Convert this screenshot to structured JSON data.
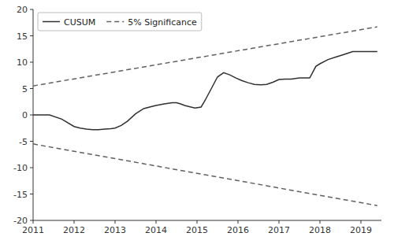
{
  "chart_data": {
    "type": "line",
    "xlim": [
      2011,
      2019.5
    ],
    "ylim": [
      -20,
      20
    ],
    "xticks": [
      2011,
      2012,
      2013,
      2014,
      2015,
      2016,
      2017,
      2018,
      2019
    ],
    "yticks": [
      -20,
      -15,
      -10,
      -5,
      0,
      5,
      10,
      15,
      20
    ],
    "grid": false,
    "legend": "upper left",
    "series": [
      {
        "name": "CUSUM",
        "color": "#303030",
        "line_style": "solid",
        "x": [
          2011,
          2011.2,
          2011.4,
          2011.7,
          2012.0,
          2012.15,
          2012.3,
          2012.45,
          2012.6,
          2012.75,
          2012.9,
          2013.0,
          2013.15,
          2013.3,
          2013.5,
          2013.7,
          2013.9,
          2014.0,
          2014.2,
          2014.4,
          2014.5,
          2014.6,
          2014.7,
          2014.85,
          2014.95,
          2015.1,
          2015.2,
          2015.35,
          2015.5,
          2015.65,
          2015.8,
          2015.95,
          2016.1,
          2016.25,
          2016.4,
          2016.55,
          2016.7,
          2016.85,
          2017.0,
          2017.15,
          2017.3,
          2017.5,
          2017.75,
          2017.9,
          2018.0,
          2018.2,
          2018.4,
          2018.6,
          2018.8,
          2019.0,
          2019.2,
          2019.4
        ],
        "values": [
          0,
          0,
          0,
          -0.8,
          -2.2,
          -2.5,
          -2.7,
          -2.8,
          -2.8,
          -2.7,
          -2.6,
          -2.5,
          -2.0,
          -1.2,
          0.2,
          1.2,
          1.6,
          1.8,
          2.1,
          2.3,
          2.3,
          2.1,
          1.8,
          1.5,
          1.3,
          1.5,
          2.8,
          5.0,
          7.2,
          8.0,
          7.6,
          7.0,
          6.5,
          6.1,
          5.8,
          5.7,
          5.8,
          6.2,
          6.7,
          6.8,
          6.8,
          7.0,
          7.0,
          9.2,
          9.7,
          10.5,
          11.0,
          11.5,
          12.0,
          12.0,
          12.0,
          12.0
        ]
      },
      {
        "name": "5% Significance",
        "color": "#606060",
        "line_style": "dashed",
        "x": [
          2011,
          2019.4
        ],
        "values": [
          5.5,
          16.7
        ]
      },
      {
        "color": "#606060",
        "line_style": "dashed",
        "x": [
          2011,
          2019.4
        ],
        "values": [
          -5.5,
          -17.2
        ]
      }
    ]
  }
}
